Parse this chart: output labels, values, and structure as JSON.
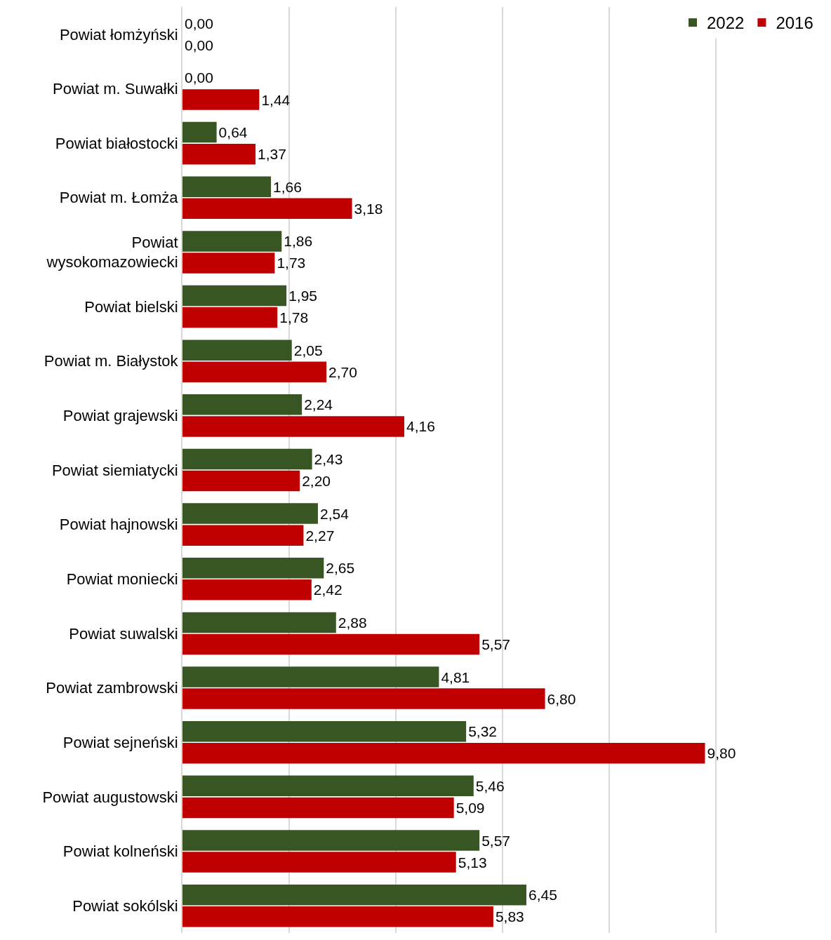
{
  "chart_data": {
    "type": "bar",
    "orientation": "horizontal",
    "categories": [
      "Powiat łomżyński",
      "Powiat m. Suwałki",
      "Powiat białostocki",
      "Powiat m. Łomża",
      "Powiat\nwysokomazowiecki",
      "Powiat bielski",
      "Powiat m. Białystok",
      "Powiat grajewski",
      "Powiat siemiatycki",
      "Powiat hajnowski",
      "Powiat moniecki",
      "Powiat suwalski",
      "Powiat zambrowski",
      "Powiat sejneński",
      "Powiat augustowski",
      "Powiat kolneński",
      "Powiat sokólski"
    ],
    "series": [
      {
        "name": "2022",
        "color": "#375623",
        "values": [
          0.0,
          0.0,
          0.64,
          1.66,
          1.86,
          1.95,
          2.05,
          2.24,
          2.43,
          2.54,
          2.65,
          2.88,
          4.81,
          5.32,
          5.46,
          5.57,
          6.45
        ],
        "value_labels": [
          "0,00",
          "0,00",
          "0,64",
          "1,66",
          "1,86",
          "1,95",
          "2,05",
          "2,24",
          "2,43",
          "2,54",
          "2,65",
          "2,88",
          "4,81",
          "5,32",
          "5,46",
          "5,57",
          "6,45"
        ]
      },
      {
        "name": "2016",
        "color": "#c00000",
        "values": [
          0.0,
          1.44,
          1.37,
          3.18,
          1.73,
          1.78,
          2.7,
          4.16,
          2.2,
          2.27,
          2.42,
          5.57,
          6.8,
          9.8,
          5.09,
          5.13,
          5.83
        ],
        "value_labels": [
          "0,00",
          "1,44",
          "1,37",
          "3,18",
          "1,73",
          "1,78",
          "2,70",
          "4,16",
          "2,20",
          "2,27",
          "2,42",
          "5,57",
          "6,80",
          "9,80",
          "5,09",
          "5,13",
          "5,83"
        ]
      }
    ],
    "xlim": [
      0,
      11.9
    ],
    "xticks": [
      {
        "value": 0,
        "label": null
      },
      {
        "value": 2,
        "label": null
      },
      {
        "value": 4,
        "label": null
      },
      {
        "value": 6,
        "label": null
      },
      {
        "value": 8,
        "label": null
      },
      {
        "value": 10,
        "label": null
      }
    ],
    "tick_labels": "y",
    "grid": "x",
    "legend": "top right"
  }
}
